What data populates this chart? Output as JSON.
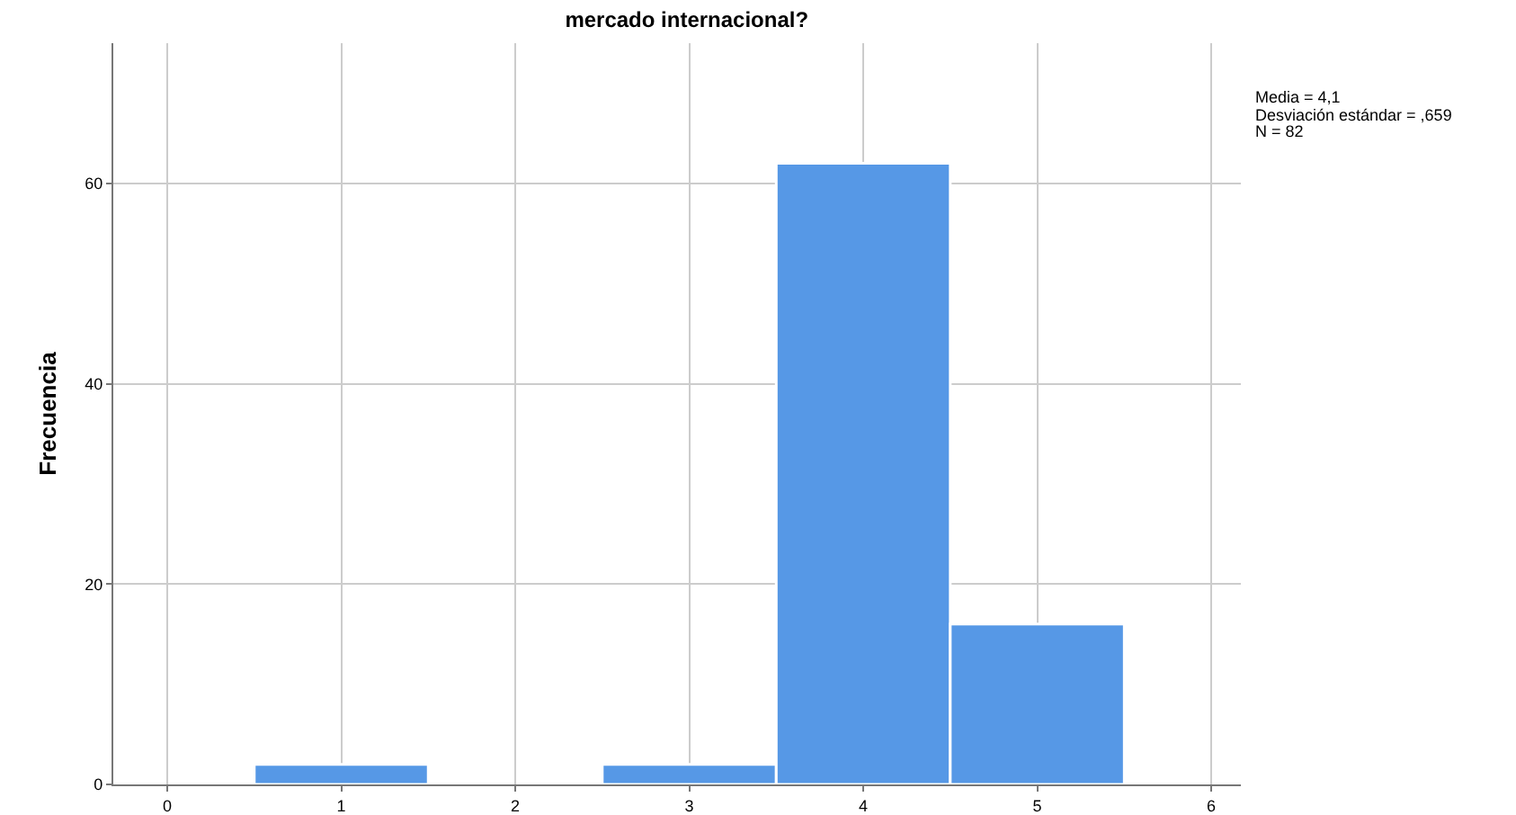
{
  "chart_data": {
    "type": "histogram",
    "title": "mercado internacional?",
    "ylabel": "Frecuencia",
    "bins": [
      0.5,
      1.5,
      2.5,
      3.5,
      4.5,
      5.5
    ],
    "values": [
      2,
      0,
      2,
      62,
      16
    ],
    "color": "#5698e6",
    "xlim": [
      -0.31,
      6.17
    ],
    "xticks": [
      0,
      1,
      2,
      3,
      4,
      5,
      6
    ],
    "ylim": [
      0,
      74
    ],
    "yticks": [
      0,
      20,
      40,
      60
    ],
    "grid": true,
    "annotations": [
      "Media = 4,1",
      "Desviación estándar = ,659",
      "N = 82"
    ]
  }
}
